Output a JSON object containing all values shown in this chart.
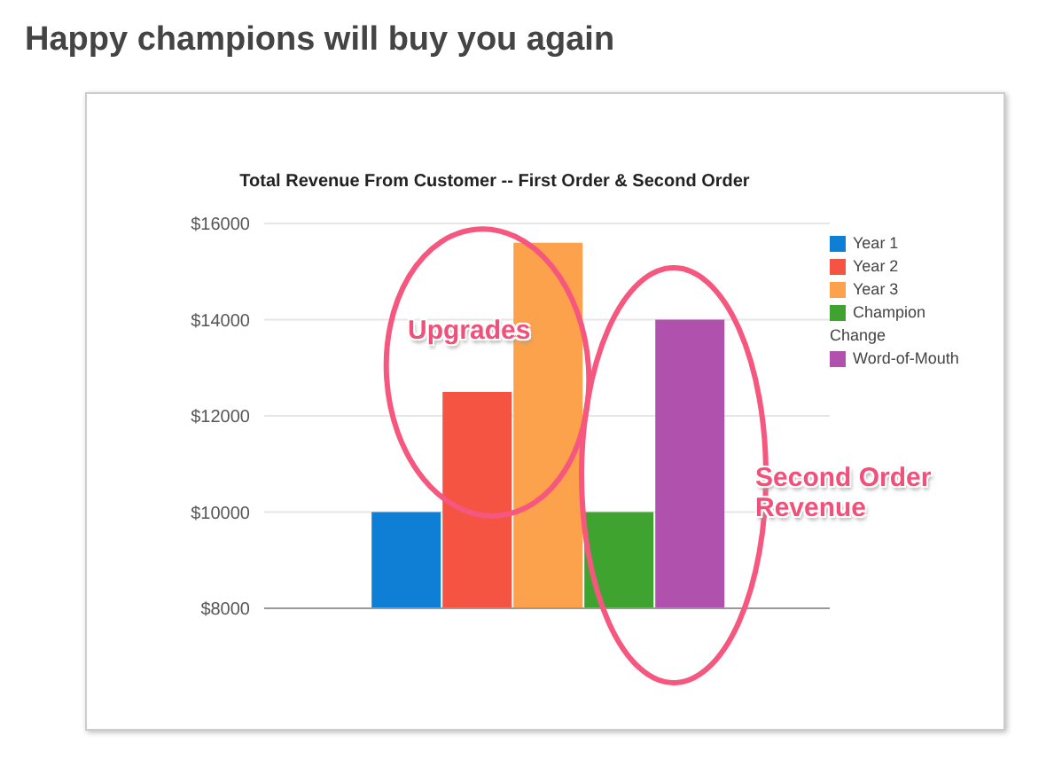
{
  "chart_data": {
    "type": "bar",
    "title": "Happy champions will buy you again",
    "subtitle": "Total Revenue From Customer -- First Order & Second Order",
    "categories": [
      null
    ],
    "series": [
      {
        "name": "Year 1",
        "color": "#0f7fd6",
        "values": [
          10000
        ]
      },
      {
        "name": "Year 2",
        "color": "#f55442",
        "values": [
          12500
        ]
      },
      {
        "name": "Year 3",
        "color": "#fca24c",
        "values": [
          15600
        ]
      },
      {
        "name": "Champion Change",
        "color": "#3fa42f",
        "values": [
          10000
        ]
      },
      {
        "name": "Word-of-Mouth",
        "color": "#b052ad",
        "values": [
          14000
        ]
      }
    ],
    "ylim": [
      8000,
      16000
    ],
    "yticks": [
      {
        "value": 8000,
        "label": "$8000"
      },
      {
        "value": 10000,
        "label": "$10000"
      },
      {
        "value": 12000,
        "label": "$12000"
      },
      {
        "value": 14000,
        "label": "$14000"
      },
      {
        "value": 16000,
        "label": "$16000"
      }
    ],
    "grid": "y",
    "legend": "top right",
    "tick_labels": "y",
    "annotations": [
      "Upgrades",
      "Second Order Revenue"
    ]
  }
}
